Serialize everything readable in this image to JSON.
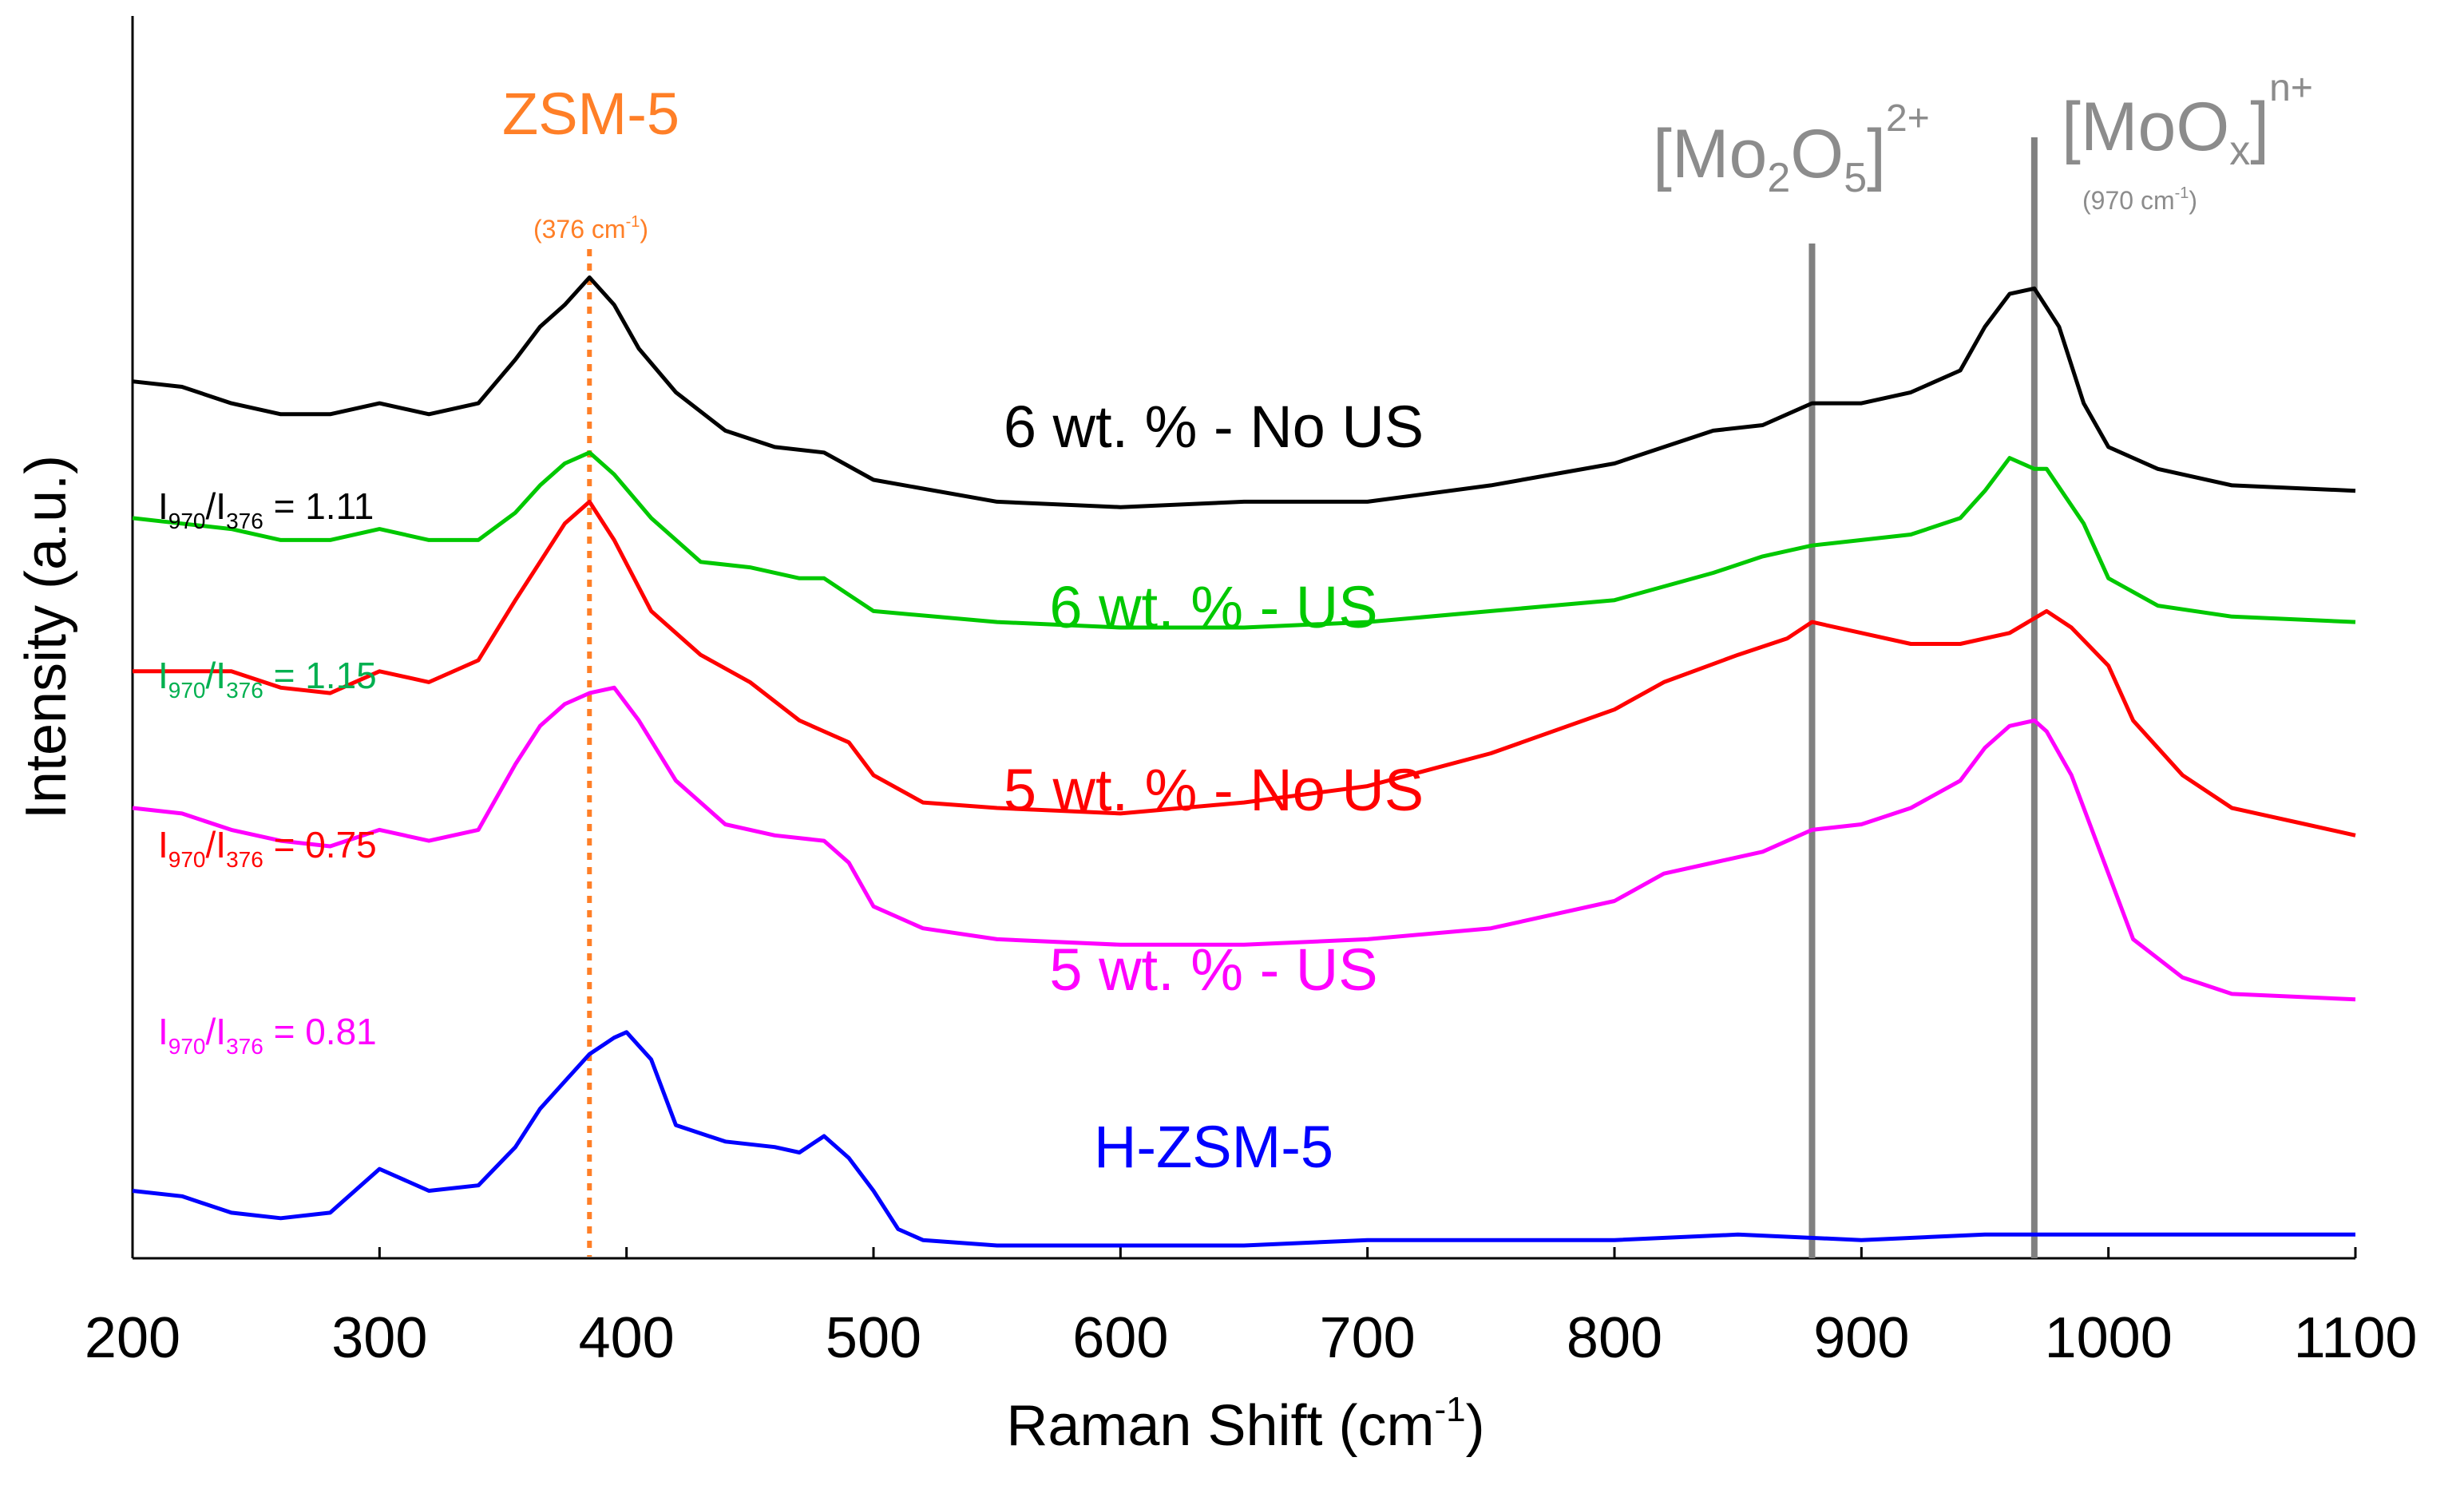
{
  "chart_data": {
    "type": "line",
    "xlabel": "Raman Shift (cm",
    "xlabel_sup": "-1",
    "xlabel_close": ")",
    "ylabel": "Intensity (a.u.)",
    "xlim": [
      200,
      1100
    ],
    "ylim": [
      0,
      100
    ],
    "xticks": [
      "200",
      "300",
      "400",
      "500",
      "600",
      "700",
      "800",
      "900",
      "1000",
      "1100"
    ],
    "grid": false,
    "annotations": {
      "zsm5_label": "ZSM-5",
      "zsm5_position": "(376 cm",
      "zsm5_position_sup": "-1",
      "zsm5_position_close": ")",
      "zsm5_line_x": 385,
      "mo2o5_main": "[Mo",
      "mo2o5_sub1": "2",
      "mo2o5_mid": "O",
      "mo2o5_sub2": "5",
      "mo2o5_close": "]",
      "mo2o5_sup": "2+",
      "mo2o5_line_x": 880,
      "moox_main": "[MoO",
      "moox_sub": "x",
      "moox_close": "]",
      "moox_sup": "n+",
      "moox_position": "(970 cm",
      "moox_position_sup": "-1",
      "moox_position_close": ")",
      "moox_line_x": 970
    },
    "series": [
      {
        "name": "6 wt. % - No US",
        "color": "#000000",
        "ratio": {
          "num": "970",
          "den": "376",
          "value": "= 1.11"
        },
        "x": [
          200,
          220,
          240,
          260,
          280,
          300,
          320,
          340,
          355,
          365,
          375,
          385,
          395,
          405,
          420,
          440,
          460,
          480,
          500,
          550,
          600,
          650,
          700,
          750,
          800,
          820,
          840,
          860,
          880,
          900,
          920,
          940,
          950,
          960,
          970,
          980,
          990,
          1000,
          1020,
          1050,
          1100
        ],
        "y": [
          79,
          78.5,
          77,
          76,
          76,
          77,
          76,
          77,
          81,
          84,
          86,
          88.5,
          86,
          82,
          78,
          74.5,
          73,
          72.5,
          70,
          68,
          67.5,
          68,
          68,
          69.5,
          71.5,
          73,
          74.5,
          75,
          77,
          77,
          78,
          80,
          84,
          87,
          87.5,
          84,
          77,
          73,
          71,
          69.5,
          69
        ]
      },
      {
        "name": "6 wt. % - US",
        "color": "#00c800",
        "ratio": {
          "num": "970",
          "den": "376",
          "value": "= 1.15"
        },
        "x": [
          200,
          220,
          240,
          260,
          280,
          300,
          320,
          340,
          355,
          365,
          375,
          385,
          395,
          410,
          430,
          450,
          470,
          480,
          490,
          500,
          550,
          600,
          650,
          700,
          750,
          800,
          840,
          860,
          880,
          900,
          920,
          940,
          950,
          960,
          970,
          975,
          990,
          1000,
          1020,
          1050,
          1100
        ],
        "y": [
          66.5,
          66,
          65.5,
          64.5,
          64.5,
          65.5,
          64.5,
          64.5,
          67,
          69.5,
          71.5,
          72.5,
          70.5,
          66.5,
          62.5,
          62,
          61,
          61,
          59.5,
          58,
          57,
          56.5,
          56.5,
          57,
          58,
          59,
          61.5,
          63,
          64,
          64.5,
          65,
          66.5,
          69,
          72,
          71,
          71,
          66,
          61,
          58.5,
          57.5,
          57
        ]
      },
      {
        "name": "5 wt. % - No US",
        "color": "#ff0000",
        "ratio": {
          "num": "970",
          "den": "376",
          "value": "= 0.75"
        },
        "x": [
          200,
          220,
          240,
          260,
          280,
          300,
          320,
          340,
          355,
          365,
          375,
          385,
          395,
          410,
          430,
          450,
          470,
          480,
          490,
          500,
          520,
          550,
          600,
          650,
          700,
          750,
          800,
          820,
          850,
          870,
          880,
          900,
          920,
          940,
          960,
          975,
          985,
          1000,
          1010,
          1030,
          1050,
          1080,
          1100
        ],
        "y": [
          52.5,
          52.5,
          52.5,
          51,
          50.5,
          52.5,
          51.5,
          53.5,
          59,
          62.5,
          66,
          68,
          64.5,
          58,
          54,
          51.5,
          48,
          47,
          46,
          43,
          40.5,
          40,
          39.5,
          40.5,
          42,
          45,
          49,
          51.5,
          54,
          55.5,
          57,
          56,
          55,
          55,
          56,
          58,
          56.5,
          53,
          48,
          43,
          40,
          38.5,
          37.5
        ]
      },
      {
        "name": "5 wt. % - US",
        "color": "#ff00ff",
        "ratio": {
          "num": "970",
          "den": "376",
          "value": "= 0.81"
        },
        "x": [
          200,
          220,
          240,
          260,
          280,
          300,
          320,
          340,
          355,
          365,
          375,
          385,
          395,
          405,
          420,
          440,
          460,
          480,
          490,
          500,
          520,
          550,
          600,
          650,
          700,
          750,
          800,
          820,
          840,
          860,
          880,
          900,
          920,
          940,
          950,
          960,
          970,
          975,
          985,
          1000,
          1010,
          1030,
          1050,
          1100
        ],
        "y": [
          40,
          39.5,
          38,
          37,
          36.5,
          38,
          37,
          38,
          44,
          47.5,
          49.5,
          50.5,
          51,
          48,
          42.5,
          38.5,
          37.5,
          37,
          35,
          31,
          29,
          28,
          27.5,
          27.5,
          28,
          29,
          31.5,
          34,
          35,
          36,
          38,
          38.5,
          40,
          42.5,
          45.5,
          47.5,
          48,
          47,
          43,
          34,
          28,
          24.5,
          23,
          22.5
        ]
      },
      {
        "name": "H-ZSM-5",
        "color": "#0000ff",
        "ratio": null,
        "x": [
          200,
          220,
          240,
          260,
          280,
          290,
          300,
          310,
          320,
          340,
          355,
          365,
          375,
          385,
          395,
          400,
          410,
          420,
          440,
          460,
          470,
          480,
          490,
          500,
          510,
          520,
          550,
          600,
          650,
          700,
          750,
          800,
          850,
          900,
          950,
          1000,
          1050,
          1100
        ],
        "y": [
          5,
          4.5,
          3,
          2.5,
          3,
          5,
          7,
          6,
          5,
          5.5,
          9,
          12.5,
          15,
          17.5,
          19,
          19.5,
          17,
          11,
          9.5,
          9,
          8.5,
          10,
          8,
          5,
          1.5,
          0.5,
          0,
          0,
          0,
          0.5,
          0.5,
          0.5,
          1,
          0.5,
          1,
          1,
          1,
          1
        ]
      }
    ],
    "series_label_color": "#0000ff",
    "h_zsm5_label": "H-ZSM-5"
  }
}
